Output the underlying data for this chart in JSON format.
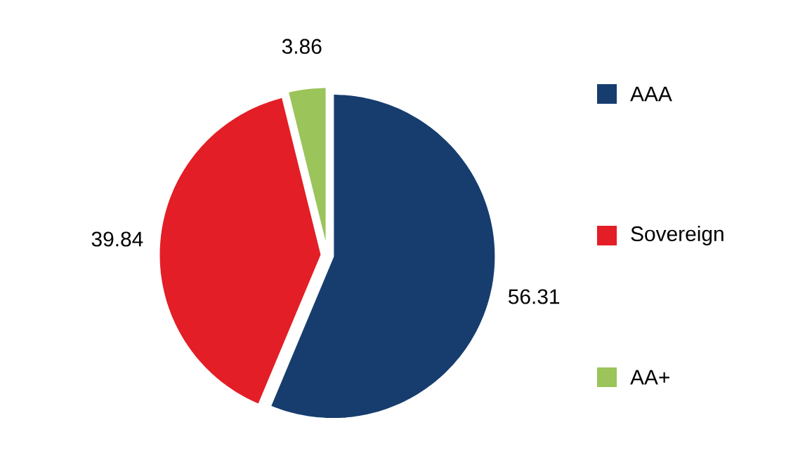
{
  "chart_data": {
    "type": "pie",
    "categories": [
      "AAA",
      "Sovereign",
      "AA+"
    ],
    "values": [
      56.31,
      39.84,
      3.86
    ],
    "colors": [
      "#173d6f",
      "#e31e26",
      "#9bc45a"
    ],
    "data_labels": true,
    "legend": "right"
  }
}
